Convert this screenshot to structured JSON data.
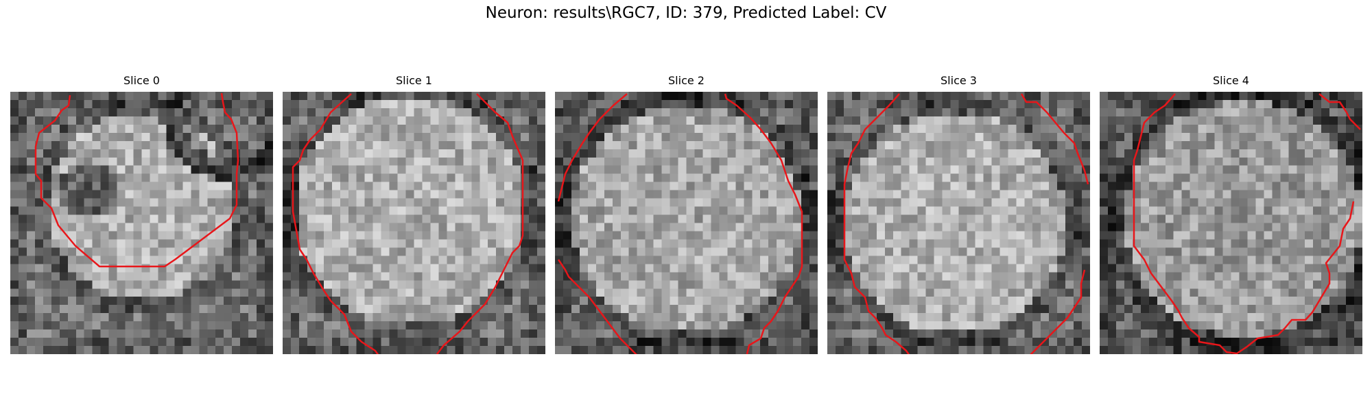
{
  "figure": {
    "title": "Neuron: results\\RGC7, ID: 379, Predicted Label: CV",
    "contour_color": "#e8161a"
  },
  "slices": [
    {
      "title": "Slice 0",
      "nucleus_contrast": "dark-center"
    },
    {
      "title": "Slice 1",
      "nucleus_contrast": "bright"
    },
    {
      "title": "Slice 2",
      "nucleus_contrast": "medium"
    },
    {
      "title": "Slice 3",
      "nucleus_contrast": "bright"
    },
    {
      "title": "Slice 4",
      "nucleus_contrast": "mottled"
    }
  ]
}
